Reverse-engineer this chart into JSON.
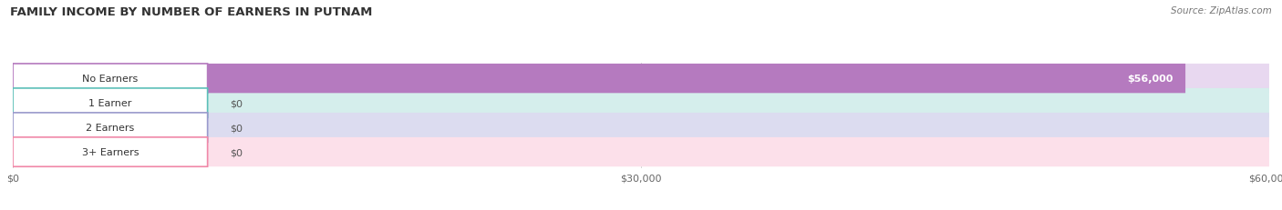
{
  "title": "FAMILY INCOME BY NUMBER OF EARNERS IN PUTNAM",
  "source": "Source: ZipAtlas.com",
  "categories": [
    "No Earners",
    "1 Earner",
    "2 Earners",
    "3+ Earners"
  ],
  "values": [
    56000,
    0,
    0,
    0
  ],
  "bar_colors": [
    "#b57abf",
    "#5bbfb8",
    "#9999cc",
    "#f088a8"
  ],
  "bar_bg_colors": [
    "#e8d8f0",
    "#d5eeec",
    "#dcdcf0",
    "#fce0ea"
  ],
  "value_labels": [
    "$56,000",
    "$0",
    "$0",
    "$0"
  ],
  "xlim": [
    0,
    60000
  ],
  "xticks": [
    0,
    30000,
    60000
  ],
  "xtick_labels": [
    "$0",
    "$30,000",
    "$60,000"
  ],
  "figsize": [
    14.06,
    2.32
  ],
  "dpi": 100,
  "background_color": "#ffffff"
}
